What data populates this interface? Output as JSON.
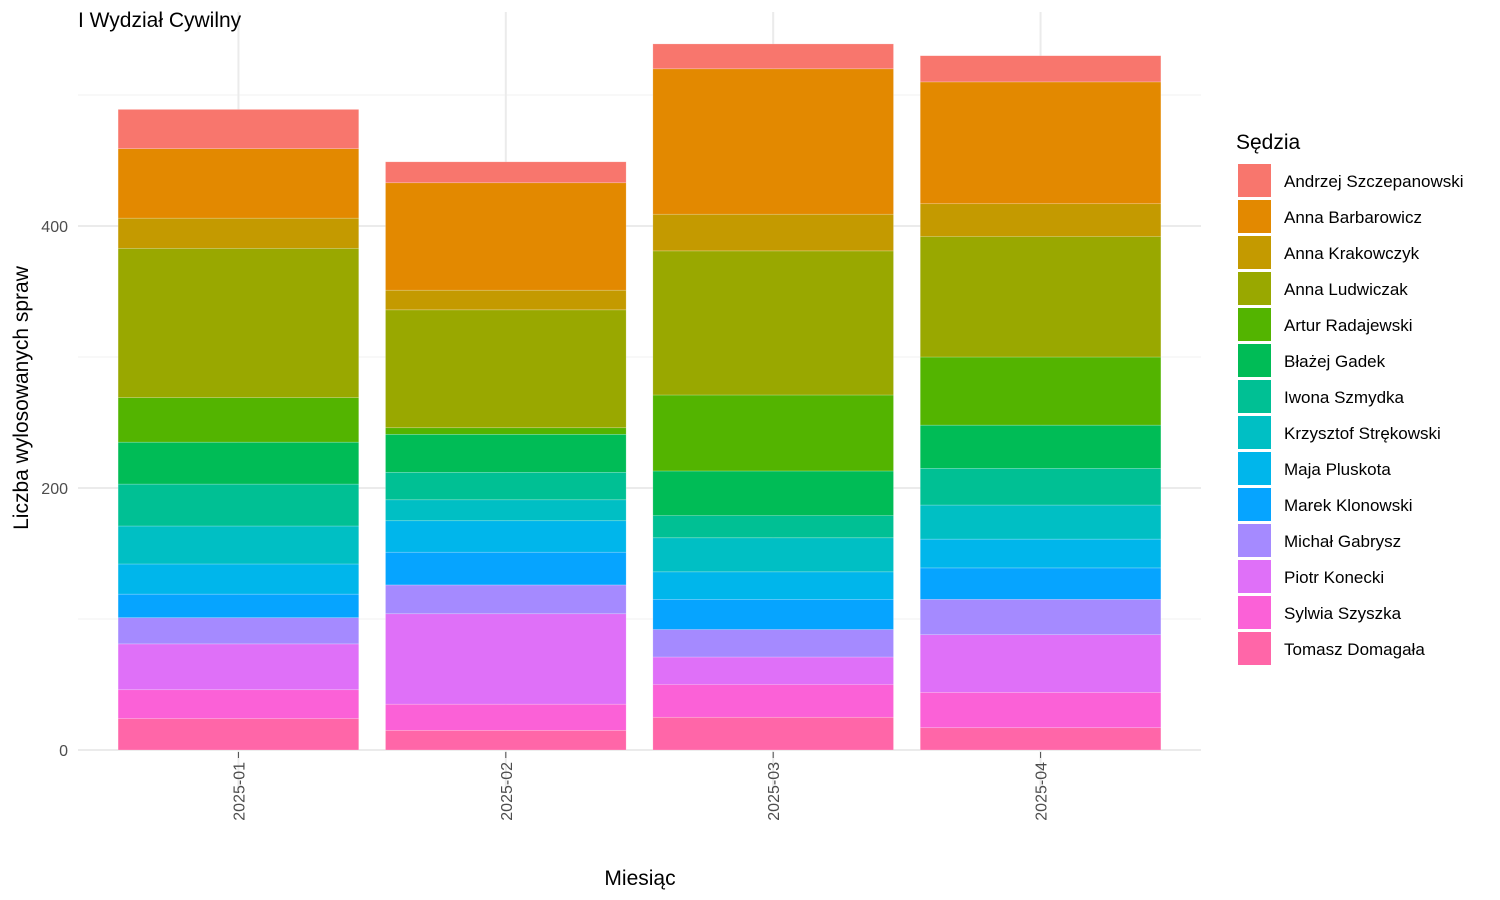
{
  "chart_data": {
    "type": "bar",
    "stacked": true,
    "title": "I Wydział Cywilny",
    "xlabel": "Miesiąc",
    "ylabel": "Liczba wylosowanych spraw",
    "ylim": [
      -20,
      565
    ],
    "yticks": [
      0,
      200,
      400
    ],
    "grid": true,
    "legend_position": "right",
    "legend_title": "Sędzia",
    "categories": [
      "2025-01",
      "2025-02",
      "2025-03",
      "2025-04"
    ],
    "series": [
      {
        "name": "Andrzej Szczepanowski",
        "color": "#F8766D",
        "values": [
          30,
          16,
          19,
          20
        ]
      },
      {
        "name": "Anna Barbarowicz",
        "color": "#E38900",
        "values": [
          53,
          82,
          111,
          93
        ]
      },
      {
        "name": "Anna Krakowczyk",
        "color": "#C49A00",
        "values": [
          23,
          15,
          28,
          25
        ]
      },
      {
        "name": "Anna Ludwiczak",
        "color": "#99A800",
        "values": [
          114,
          90,
          110,
          92
        ]
      },
      {
        "name": "Artur Radajewski",
        "color": "#53B400",
        "values": [
          34,
          5,
          58,
          52
        ]
      },
      {
        "name": "Błażej Gadek",
        "color": "#00BC56",
        "values": [
          32,
          29,
          34,
          33
        ]
      },
      {
        "name": "Iwona Szmydka",
        "color": "#00C094",
        "values": [
          32,
          21,
          17,
          28
        ]
      },
      {
        "name": "Krzysztof Strękowski",
        "color": "#00BFC4",
        "values": [
          29,
          16,
          26,
          26
        ]
      },
      {
        "name": "Maja Pluskota",
        "color": "#00B6EB",
        "values": [
          23,
          24,
          21,
          22
        ]
      },
      {
        "name": "Marek Klonowski",
        "color": "#06A4FF",
        "values": [
          18,
          25,
          23,
          24
        ]
      },
      {
        "name": "Michał Gabrysz",
        "color": "#A58AFF",
        "values": [
          20,
          22,
          21,
          27
        ]
      },
      {
        "name": "Piotr Konecki",
        "color": "#DF70F8",
        "values": [
          35,
          69,
          21,
          44
        ]
      },
      {
        "name": "Sylwia Szyszka",
        "color": "#FB61D7",
        "values": [
          22,
          20,
          25,
          27
        ]
      },
      {
        "name": "Tomasz Domagała",
        "color": "#FF66A8",
        "values": [
          24,
          15,
          25,
          17
        ]
      }
    ]
  }
}
